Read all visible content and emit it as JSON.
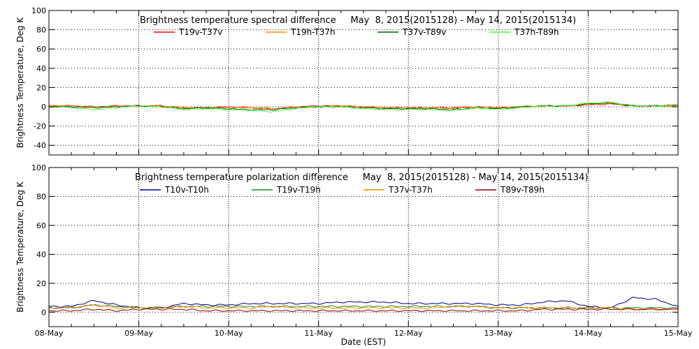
{
  "figure": {
    "xlabel": "Date (EST)"
  },
  "chart_data": [
    {
      "type": "line",
      "title": "Brightness temperature spectral difference     May  8, 2015(2015128) - May 14, 2015(2015134)",
      "ylabel": "Brightness Temperature, Deg K",
      "xlim": [
        "08-May",
        "15-May"
      ],
      "ylim": [
        -50,
        100
      ],
      "yticks": [
        -40,
        -20,
        0,
        20,
        40,
        60,
        80,
        100
      ],
      "xticks": [
        "08-May",
        "09-May",
        "10-May",
        "11-May",
        "12-May",
        "13-May",
        "14-May",
        "15-May"
      ],
      "grid": true,
      "legend_position": "top",
      "x_days": [
        0,
        0.25,
        0.5,
        0.75,
        1,
        1.25,
        1.5,
        1.75,
        2,
        2.25,
        2.5,
        2.75,
        3,
        3.25,
        3.5,
        3.75,
        4,
        4.25,
        4.5,
        4.75,
        5,
        5.25,
        5.5,
        5.75,
        6,
        6.25,
        6.5,
        6.75,
        7
      ],
      "series": [
        {
          "name": "T19v-T37v",
          "color": "#ff0000",
          "values": [
            1,
            1,
            0,
            1,
            1,
            1,
            -1,
            -1,
            0,
            -1,
            -2,
            0,
            1,
            1,
            0,
            -1,
            -1,
            -1,
            -1,
            0,
            -1,
            0,
            1,
            1,
            2,
            3,
            1,
            1,
            1
          ]
        },
        {
          "name": "T19h-T37h",
          "color": "#ff8c00",
          "values": [
            1,
            1,
            0,
            0,
            1,
            1,
            -1,
            -1,
            -1,
            -1,
            -2,
            0,
            0,
            1,
            0,
            -1,
            -1,
            -1,
            -2,
            0,
            -1,
            0,
            1,
            1,
            3,
            4,
            1,
            1,
            1
          ]
        },
        {
          "name": "T37v-T89v",
          "color": "#006400",
          "values": [
            0,
            0,
            -1,
            0,
            1,
            0,
            -2,
            -1,
            -2,
            -3,
            -3,
            -1,
            0,
            0,
            -1,
            -2,
            -2,
            -2,
            -3,
            -1,
            -2,
            0,
            1,
            1,
            3,
            4,
            1,
            1,
            2
          ]
        },
        {
          "name": "T37h-T89h",
          "color": "#44ff44",
          "values": [
            0,
            -1,
            -3,
            -1,
            1,
            0,
            -3,
            -2,
            -3,
            -4,
            -5,
            -2,
            0,
            0,
            -2,
            -3,
            -3,
            -3,
            -4,
            -1,
            -3,
            -1,
            1,
            1,
            4,
            5,
            1,
            1,
            2
          ]
        }
      ]
    },
    {
      "type": "line",
      "title": "Brightness temperature polarization difference     May  8, 2015(2015128) - May 14, 2015(2015134)",
      "ylabel": "Brightness Temperature, Deg K",
      "xlabel": "Date (EST)",
      "xlim": [
        "08-May",
        "15-May"
      ],
      "ylim": [
        -10,
        100
      ],
      "yticks": [
        0,
        20,
        40,
        60,
        80,
        100
      ],
      "xticks": [
        "08-May",
        "09-May",
        "10-May",
        "11-May",
        "12-May",
        "13-May",
        "14-May",
        "15-May"
      ],
      "grid": true,
      "legend_position": "top",
      "x_days": [
        0,
        0.25,
        0.5,
        0.75,
        1,
        1.25,
        1.5,
        1.75,
        2,
        2.25,
        2.5,
        2.75,
        3,
        3.25,
        3.5,
        3.75,
        4,
        4.25,
        4.5,
        4.75,
        5,
        5.25,
        5.5,
        5.75,
        6,
        6.25,
        6.5,
        6.75,
        7
      ],
      "series": [
        {
          "name": "T10v-T10h",
          "color": "#00008b",
          "values": [
            4,
            4,
            8,
            5,
            3,
            3,
            6,
            5,
            5,
            6,
            6,
            6,
            6,
            7,
            7,
            7,
            6,
            6,
            6,
            6,
            5,
            5,
            7,
            8,
            4,
            3,
            10,
            9,
            4
          ]
        },
        {
          "name": "T19v-T19h",
          "color": "#228b22",
          "values": [
            3,
            3,
            5,
            4,
            3,
            3,
            4,
            4,
            4,
            4,
            4,
            4,
            4,
            4,
            4,
            4,
            4,
            4,
            4,
            4,
            3,
            3,
            3,
            3,
            3,
            3,
            3,
            3,
            3
          ]
        },
        {
          "name": "T37v-T37h",
          "color": "#ff8c00",
          "values": [
            3,
            3,
            5,
            3,
            3,
            3,
            4,
            3,
            3,
            3,
            4,
            3,
            3,
            3,
            3,
            3,
            3,
            3,
            4,
            4,
            3,
            3,
            3,
            3,
            3,
            3,
            2,
            2,
            2
          ]
        },
        {
          "name": "T89v-T89h",
          "color": "#8b0000",
          "values": [
            1,
            1,
            2,
            1,
            2,
            2,
            2,
            1,
            1,
            1,
            1,
            1,
            1,
            1,
            1,
            1,
            1,
            1,
            1,
            1,
            1,
            1,
            2,
            2,
            2,
            2,
            2,
            2,
            2
          ]
        }
      ]
    }
  ]
}
